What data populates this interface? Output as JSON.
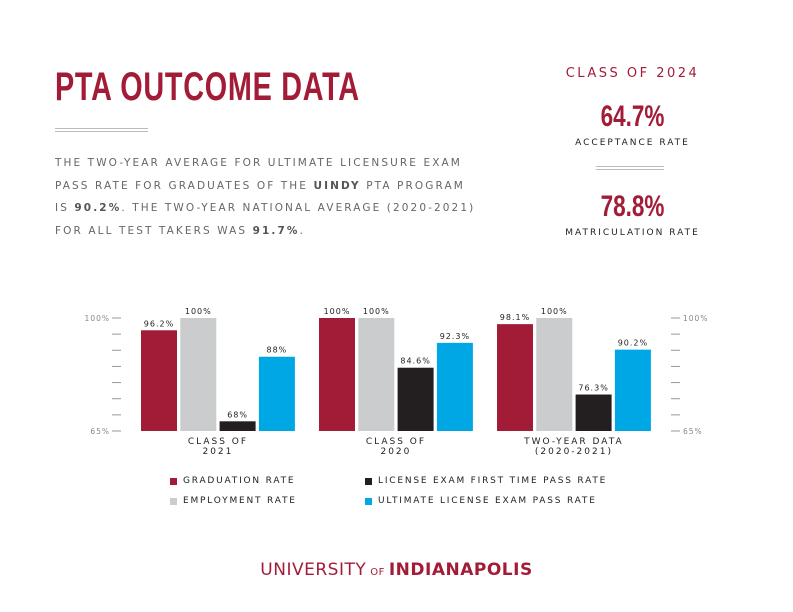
{
  "header": {
    "title": "PTA OUTCOME DATA",
    "intro": {
      "l1": "THE TWO-YEAR AVERAGE FOR ULTIMATE LICENSURE EXAM",
      "l2a": "PASS RATE FOR GRADUATES OF THE ",
      "l2b": "UINDY",
      "l2c": " PTA PROGRAM",
      "l3a": "IS ",
      "l3b": "90.2%",
      "l3c": ". THE TWO-YEAR NATIONAL AVERAGE (2020-2021)",
      "l4a": "FOR ALL TEST TAKERS WAS ",
      "l4b": "91.7%",
      "l4c": "."
    }
  },
  "stats": {
    "class_label": "CLASS OF 2024",
    "acceptance_value": "64.7%",
    "acceptance_label": "ACCEPTANCE RATE",
    "matriculation_value": "78.8%",
    "matriculation_label": "MATRICULATION RATE"
  },
  "chart_data": {
    "type": "bar",
    "categories": [
      [
        "CLASS OF",
        "2021"
      ],
      [
        "CLASS OF",
        "2020"
      ],
      [
        "TWO-YEAR DATA",
        "(2020-2021)"
      ]
    ],
    "series": [
      {
        "name": "GRADUATION RATE",
        "color": "#a31c37",
        "values": [
          96.2,
          100,
          98.1
        ],
        "labels": [
          "96.2%",
          "100%",
          "98.1%"
        ]
      },
      {
        "name": "EMPLOYMENT RATE",
        "color": "#cbcccd",
        "values": [
          100,
          100,
          100
        ],
        "labels": [
          "100%",
          "100%",
          "100%"
        ]
      },
      {
        "name": "LICENSE EXAM FIRST TIME PASS RATE",
        "color": "#231f20",
        "values": [
          68,
          84.6,
          76.3
        ],
        "labels": [
          "68%",
          "84.6%",
          "76.3%"
        ]
      },
      {
        "name": "ULTIMATE LICENSE EXAM PASS RATE",
        "color": "#00a7e5",
        "values": [
          88,
          92.3,
          90.2
        ],
        "labels": [
          "88%",
          "92.3%",
          "90.2%"
        ]
      }
    ],
    "ylim": [
      65,
      100
    ],
    "ytick_labels": {
      "top": "100%",
      "bottom": "65%"
    },
    "ytick_step": 5,
    "legend_position": "bottom"
  },
  "footer": {
    "university": "UNIVERSITY",
    "of": "OF",
    "indianapolis": "INDIANAPOLIS"
  }
}
